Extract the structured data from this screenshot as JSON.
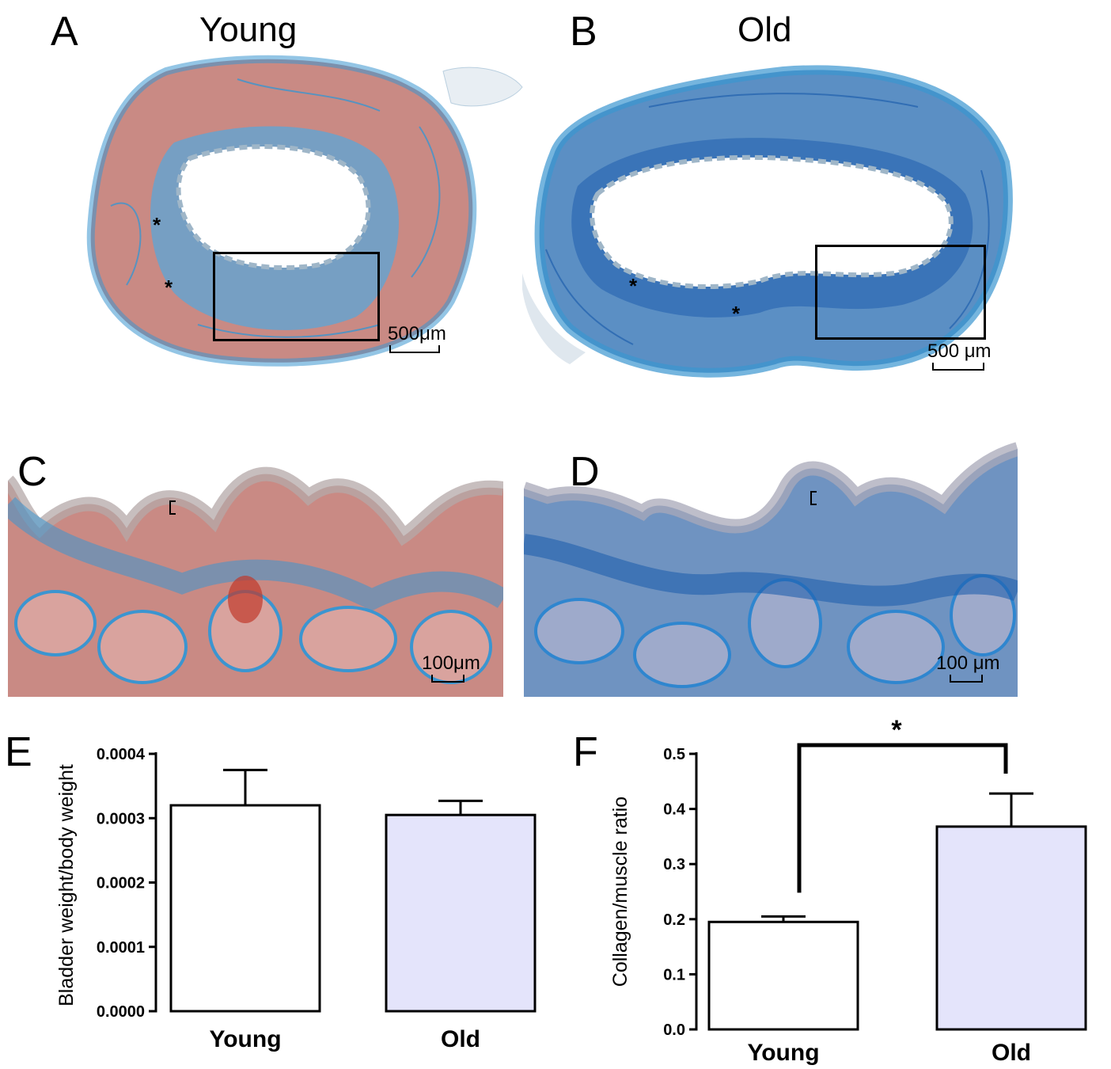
{
  "panels": {
    "A": {
      "letter": "A",
      "title": "Young",
      "scale_label": "500μm",
      "star": "*"
    },
    "B": {
      "letter": "B",
      "title": "Old",
      "scale_label": "500 μm",
      "star": "*"
    },
    "C": {
      "letter": "C",
      "scale_label": "100μm"
    },
    "D": {
      "letter": "D",
      "scale_label": "100 μm"
    },
    "E": {
      "letter": "E"
    },
    "F": {
      "letter": "F"
    }
  },
  "chart_data": [
    {
      "panel": "E",
      "type": "bar",
      "categories": [
        "Young",
        "Old"
      ],
      "values": [
        0.00032,
        0.000305
      ],
      "errors": [
        5.5e-05,
        2.2e-05
      ],
      "ylabel": "Bladder weight/body weight",
      "ylim": [
        0,
        0.0004
      ],
      "yticks": [
        "0.0000",
        "0.0001",
        "0.0002",
        "0.0003",
        "0.0004"
      ],
      "colors": [
        "#ffffff",
        "#e4e4fb"
      ],
      "grid": false
    },
    {
      "panel": "F",
      "type": "bar",
      "categories": [
        "Young",
        "Old"
      ],
      "values": [
        0.195,
        0.368
      ],
      "errors": [
        0.01,
        0.06
      ],
      "ylabel": "Collagen/muscle ratio",
      "ylim": [
        0,
        0.5
      ],
      "yticks": [
        "0.0",
        "0.1",
        "0.2",
        "0.3",
        "0.4",
        "0.5"
      ],
      "colors": [
        "#ffffff",
        "#e4e4fb"
      ],
      "significance": "*",
      "grid": false
    }
  ],
  "colors": {
    "muscle": "#c98a84",
    "collagen": "#3b95d0",
    "dark_collagen": "#1f5fae",
    "old_bar": "#e4e4fb"
  }
}
